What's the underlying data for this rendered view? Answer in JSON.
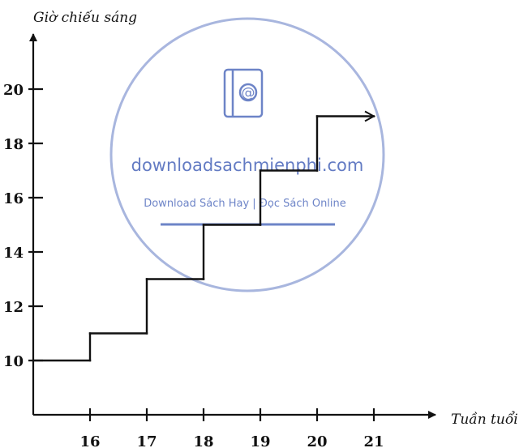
{
  "chart_data": {
    "type": "line",
    "ylabel": "Giờ chiếu sáng",
    "xlabel": "Tuần tuổi",
    "x_ticks": [
      "16",
      "17",
      "18",
      "19",
      "20",
      "21"
    ],
    "y_ticks": [
      "10",
      "12",
      "14",
      "16",
      "18",
      "20"
    ],
    "xlim": [
      15,
      21.9
    ],
    "ylim": [
      8,
      21.5
    ],
    "series": [
      {
        "steps": [
          {
            "x_start": 15,
            "x_end": 16,
            "y": 10
          },
          {
            "x_start": 16,
            "x_end": 17,
            "y": 11
          },
          {
            "x_start": 17,
            "x_end": 18,
            "y": 13
          },
          {
            "x_start": 18,
            "x_end": 19,
            "y": 15
          },
          {
            "x_start": 19,
            "x_end": 20,
            "y": 17
          },
          {
            "x_start": 20,
            "x_end": 21,
            "y": 19
          }
        ]
      }
    ],
    "grid": false,
    "legend": "none"
  },
  "watermark": {
    "title": "downloadsachmienphi.com",
    "subtitle": "Download Sách Hay | Đọc Sách Online",
    "color": "#2f4fb0"
  }
}
